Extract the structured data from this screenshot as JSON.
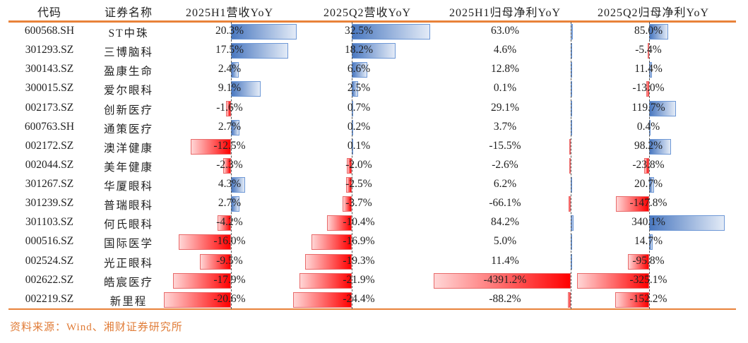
{
  "headers": [
    "代码",
    "证券名称",
    "2025H1营收YoY",
    "2025Q2营收YoY",
    "2025H1归母净利YoY",
    "2025Q2归母净利YoY"
  ],
  "colors": {
    "positive": "#4a78c0",
    "negative": "#ff0000",
    "rule": "#e8823a",
    "source": "#e07b36"
  },
  "chart_data": {
    "type": "table",
    "columns": [
      "代码",
      "证券名称",
      "2025H1营收YoY",
      "2025Q2营收YoY",
      "2025H1归母净利YoY",
      "2025Q2归母净利YoY"
    ],
    "unit": "%",
    "rows": [
      {
        "code": "600568.SH",
        "name": "ST中珠",
        "v": [
          20.3,
          32.5,
          63.0,
          85.0
        ],
        "t": [
          "20.3%",
          "32.5%",
          "63.0%",
          "85.0%"
        ]
      },
      {
        "code": "301293.SZ",
        "name": "三博脑科",
        "v": [
          17.5,
          18.2,
          4.6,
          -5.4
        ],
        "t": [
          "17.5%",
          "18.2%",
          "4.6%",
          "-5.4%"
        ]
      },
      {
        "code": "300143.SZ",
        "name": "盈康生命",
        "v": [
          2.4,
          6.6,
          12.8,
          11.4
        ],
        "t": [
          "2.4%",
          "6.6%",
          "12.8%",
          "11.4%"
        ]
      },
      {
        "code": "300015.SZ",
        "name": "爱尔眼科",
        "v": [
          9.1,
          2.5,
          0.1,
          -13.0
        ],
        "t": [
          "9.1%",
          "2.5%",
          "0.1%",
          "-13.0%"
        ]
      },
      {
        "code": "002173.SZ",
        "name": "创新医疗",
        "v": [
          -1.6,
          0.7,
          29.1,
          119.7
        ],
        "t": [
          "-1.6%",
          "0.7%",
          "29.1%",
          "119.7%"
        ]
      },
      {
        "code": "600763.SH",
        "name": "通策医疗",
        "v": [
          2.7,
          0.2,
          3.7,
          0.4
        ],
        "t": [
          "2.7%",
          "0.2%",
          "3.7%",
          "0.4%"
        ]
      },
      {
        "code": "002172.SZ",
        "name": "澳洋健康",
        "v": [
          -12.5,
          0.1,
          -15.5,
          98.2
        ],
        "t": [
          "-12.5%",
          "0.1%",
          "-15.5%",
          "98.2%"
        ]
      },
      {
        "code": "002044.SZ",
        "name": "美年健康",
        "v": [
          -2.3,
          -2.0,
          -2.6,
          -23.8
        ],
        "t": [
          "-2.3%",
          "-2.0%",
          "-2.6%",
          "-23.8%"
        ]
      },
      {
        "code": "301267.SZ",
        "name": "华厦眼科",
        "v": [
          4.3,
          -2.5,
          6.2,
          20.7
        ],
        "t": [
          "4.3%",
          "-2.5%",
          "6.2%",
          "20.7%"
        ]
      },
      {
        "code": "301239.SZ",
        "name": "普瑞眼科",
        "v": [
          2.7,
          -3.7,
          -66.1,
          -147.8
        ],
        "t": [
          "2.7%",
          "-3.7%",
          "-66.1%",
          "-147.8%"
        ]
      },
      {
        "code": "301103.SZ",
        "name": "何氏眼科",
        "v": [
          -4.2,
          -10.4,
          84.2,
          340.1
        ],
        "t": [
          "-4.2%",
          "-10.4%",
          "84.2%",
          "340.1%"
        ]
      },
      {
        "code": "000516.SZ",
        "name": "国际医学",
        "v": [
          -16.0,
          -16.9,
          5.0,
          14.7
        ],
        "t": [
          "-16.0%",
          "-16.9%",
          "5.0%",
          "14.7%"
        ]
      },
      {
        "code": "002524.SZ",
        "name": "光正眼科",
        "v": [
          -9.5,
          -19.3,
          11.4,
          -95.8
        ],
        "t": [
          "-9.5%",
          "-19.3%",
          "11.4%",
          "-95.8%"
        ]
      },
      {
        "code": "002622.SZ",
        "name": "皓宸医疗",
        "v": [
          -17.9,
          -21.9,
          -4391.2,
          -325.1
        ],
        "t": [
          "-17.9%",
          "-21.9%",
          "-4391.2%",
          "-325.1%"
        ]
      },
      {
        "code": "002219.SZ",
        "name": "新里程",
        "v": [
          -20.6,
          -24.4,
          -88.2,
          -152.2
        ],
        "t": [
          "-20.6%",
          "-24.4%",
          "-88.2%",
          "-152.2%"
        ]
      }
    ]
  },
  "source": "资料来源：Wind、湘财证券研究所"
}
